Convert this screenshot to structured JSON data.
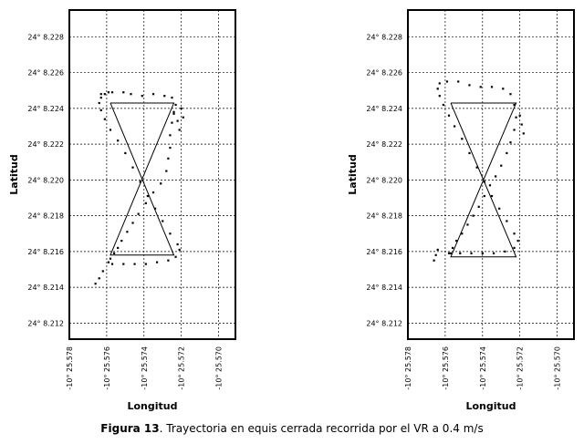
{
  "caption": {
    "label": "Figura 13",
    "text": ". Trayectoria en equis cerrada recorrida por el VR a 0.4 m/s"
  },
  "chart_data": [
    {
      "type": "scatter",
      "title": "",
      "xlabel": "Longitud",
      "ylabel": "Latitud",
      "x_ticks": [
        "-10° 25.578",
        "-10° 25.576",
        "-10° 25.574",
        "-10° 25.572",
        "-10° 25.570"
      ],
      "y_ticks": [
        "24° 8.228",
        "24° 8.226",
        "24° 8.224",
        "24° 8.222",
        "24° 8.220",
        "24° 8.218",
        "24° 8.216",
        "24° 8.214",
        "24° 8.212"
      ],
      "xlim": [
        -25.578,
        -25.5691
      ],
      "ylim": [
        8.2111,
        8.2295
      ],
      "grid": true,
      "reference_path": {
        "x": [
          -25.5758,
          -25.5724,
          -25.5758,
          -25.5724,
          -25.5758
        ],
        "y": [
          8.2243,
          8.2243,
          8.2158,
          8.2158,
          8.2243
        ]
      },
      "series": [
        {
          "x": [
            -25.5763,
            -25.5757,
            -25.5751,
            -25.5747,
            -25.5741,
            -25.5735,
            -25.5729,
            -25.5725,
            -25.5723,
            -25.5724,
            -25.5725,
            -25.5726,
            -25.5726,
            -25.5727,
            -25.5728,
            -25.5731,
            -25.5735,
            -25.5739,
            -25.5743,
            -25.5746,
            -25.5749,
            -25.5752,
            -25.5754,
            -25.5756,
            -25.5758,
            -25.5759,
            -25.5757,
            -25.5751,
            -25.5745,
            -25.5739,
            -25.5733,
            -25.5727,
            -25.5723,
            -25.5721,
            -25.5722,
            -25.5726,
            -25.573,
            -25.5734,
            -25.5738,
            -25.5742,
            -25.5746,
            -25.575,
            -25.5754,
            -25.5758,
            -25.5761,
            -25.5763,
            -25.5764,
            -25.5763,
            -25.5761,
            -25.5759
          ],
          "y": [
            8.2248,
            8.2249,
            8.2249,
            8.2248,
            8.2247,
            8.2248,
            8.2247,
            8.2246,
            8.2242,
            8.2237,
            8.2232,
            8.2225,
            8.2218,
            8.2212,
            8.2205,
            8.2198,
            8.2193,
            8.2187,
            8.2181,
            8.2176,
            8.2171,
            8.2166,
            8.2162,
            8.2159,
            8.2156,
            8.2154,
            8.2153,
            8.2153,
            8.2153,
            8.2153,
            8.2154,
            8.2155,
            8.2157,
            8.2161,
            8.2164,
            8.217,
            8.2177,
            8.2184,
            8.2191,
            8.2199,
            8.2207,
            8.2215,
            8.2222,
            8.2228,
            8.2234,
            8.2239,
            8.2243,
            8.2246,
            8.2248,
            8.2249
          ]
        },
        {
          "x": [
            -25.5724,
            -25.5722,
            -25.5721,
            -25.572,
            -25.5719,
            -25.5766,
            -25.5764,
            -25.5762
          ],
          "y": [
            8.2238,
            8.2233,
            8.2228,
            8.224,
            8.2235,
            8.2142,
            8.2145,
            8.2149
          ]
        }
      ]
    },
    {
      "type": "scatter",
      "title": "",
      "xlabel": "Longitud",
      "ylabel": "Latitud",
      "x_ticks": [
        "-10° 25.578",
        "-10° 25.576",
        "-10° 25.574",
        "-10° 25.572",
        "-10° 25.570"
      ],
      "y_ticks": [
        "24° 8.228",
        "24° 8.226",
        "24° 8.224",
        "24° 8.222",
        "24° 8.220",
        "24° 8.218",
        "24° 8.216",
        "24° 8.214",
        "24° 8.212"
      ],
      "xlim": [
        -25.578,
        -25.5691
      ],
      "ylim": [
        8.2111,
        8.2295
      ],
      "grid": true,
      "reference_path": {
        "x": [
          -25.5757,
          -25.5722,
          -25.5757,
          -25.5722,
          -25.5757
        ],
        "y": [
          8.2243,
          8.2243,
          8.2157,
          8.2157,
          8.2243
        ]
      },
      "series": [
        {
          "x": [
            -25.5763,
            -25.5759,
            -25.5753,
            -25.5747,
            -25.5741,
            -25.5735,
            -25.5729,
            -25.5725,
            -25.5723,
            -25.5722,
            -25.5723,
            -25.5725,
            -25.5727,
            -25.573,
            -25.5733,
            -25.5736,
            -25.5739,
            -25.5742,
            -25.5745,
            -25.5748,
            -25.5751,
            -25.5754,
            -25.5756,
            -25.5758,
            -25.5757,
            -25.5752,
            -25.5746,
            -25.574,
            -25.5734,
            -25.5728,
            -25.5723,
            -25.5721,
            -25.5723,
            -25.5727,
            -25.5731,
            -25.5735,
            -25.5739,
            -25.5743,
            -25.5747,
            -25.5751,
            -25.5755,
            -25.5758,
            -25.5761,
            -25.5763,
            -25.5764
          ],
          "y": [
            8.2254,
            8.2255,
            8.2255,
            8.2253,
            8.2252,
            8.2252,
            8.2251,
            8.2248,
            8.2242,
            8.2235,
            8.2228,
            8.2221,
            8.2215,
            8.2208,
            8.2202,
            8.2197,
            8.2191,
            8.2185,
            8.218,
            8.2175,
            8.217,
            8.2166,
            8.2162,
            8.2159,
            8.2159,
            8.2159,
            8.2159,
            8.2159,
            8.2159,
            8.216,
            8.2162,
            8.2166,
            8.217,
            8.2177,
            8.2184,
            8.2191,
            8.2199,
            8.2207,
            8.2215,
            8.2223,
            8.223,
            8.2236,
            8.2242,
            8.2247,
            8.2251
          ]
        },
        {
          "x": [
            -25.572,
            -25.5719,
            -25.5718,
            -25.5766,
            -25.5765,
            -25.5764
          ],
          "y": [
            8.2236,
            8.2231,
            8.2226,
            8.2155,
            8.2158,
            8.2161
          ]
        }
      ]
    }
  ]
}
